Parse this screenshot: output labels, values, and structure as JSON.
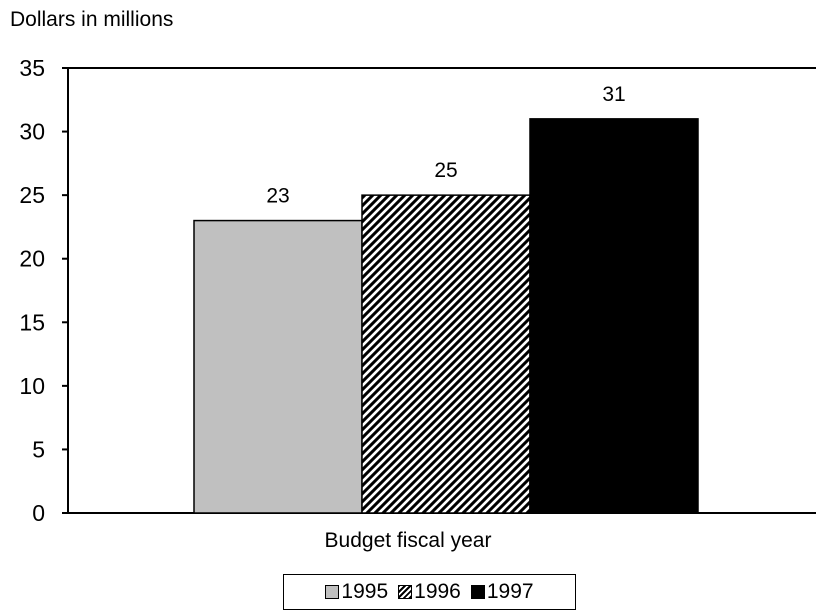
{
  "chart_data": {
    "type": "bar",
    "ylabel": "Dollars in millions",
    "xlabel": "Budget fiscal year",
    "ylim": [
      0,
      35
    ],
    "yticks": [
      0,
      5,
      10,
      15,
      20,
      25,
      30,
      35
    ],
    "grid": false,
    "legend_position": "bottom",
    "series": [
      {
        "name": "1995",
        "value": 23,
        "value_label": "23",
        "fill": "#c0c0c0",
        "pattern": "solid"
      },
      {
        "name": "1996",
        "value": 25,
        "value_label": "25",
        "fill": "#ffffff",
        "pattern": "diagonal-hatch"
      },
      {
        "name": "1997",
        "value": 31,
        "value_label": "31",
        "fill": "#000000",
        "pattern": "solid"
      }
    ]
  }
}
